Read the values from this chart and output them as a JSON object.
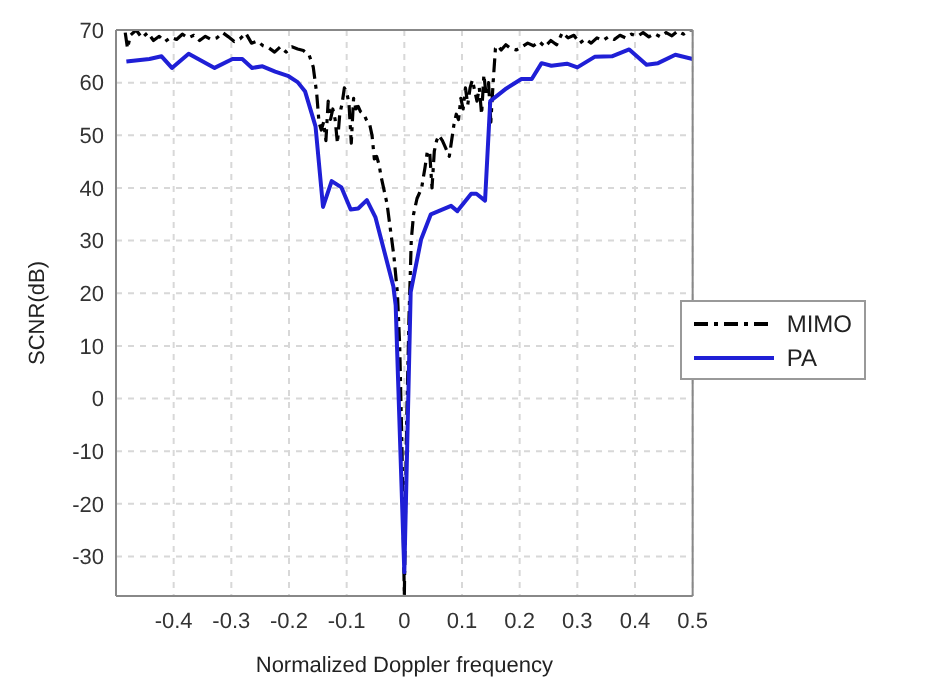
{
  "chart_data": {
    "type": "line",
    "xlabel": "Normalized Doppler frequency",
    "ylabel": "SCNR(dB)",
    "xlim": [
      -0.5,
      0.5
    ],
    "ylim": [
      -37.5,
      70
    ],
    "xticks": [
      -0.4,
      -0.3,
      -0.2,
      -0.1,
      0,
      0.1,
      0.2,
      0.3,
      0.4,
      0.5
    ],
    "yticks": [
      -30,
      -20,
      -10,
      0,
      10,
      20,
      30,
      40,
      50,
      60,
      70
    ],
    "grid": true,
    "legend": "right",
    "marker": "none",
    "series": [
      {
        "name": "MIMO",
        "color": "#000000",
        "line_style": "dashed",
        "x": [
          -0.484,
          -0.48,
          -0.475,
          -0.465,
          -0.455,
          -0.445,
          -0.435,
          -0.425,
          -0.415,
          -0.405,
          -0.395,
          -0.385,
          -0.375,
          -0.365,
          -0.355,
          -0.345,
          -0.335,
          -0.325,
          -0.315,
          -0.305,
          -0.295,
          -0.285,
          -0.275,
          -0.265,
          -0.255,
          -0.245,
          -0.235,
          -0.225,
          -0.215,
          -0.205,
          -0.195,
          -0.185,
          -0.175,
          -0.165,
          -0.158,
          -0.152,
          -0.148,
          -0.144,
          -0.14,
          -0.136,
          -0.132,
          -0.128,
          -0.124,
          -0.12,
          -0.116,
          -0.112,
          -0.108,
          -0.104,
          -0.1,
          -0.096,
          -0.092,
          -0.088,
          -0.084,
          -0.08,
          -0.076,
          -0.07,
          -0.066,
          -0.06,
          -0.056,
          -0.052,
          -0.048,
          -0.044,
          -0.04,
          -0.036,
          -0.03,
          -0.024,
          -0.018,
          -0.012,
          -0.008,
          -0.004,
          0,
          0.004,
          0.008,
          0.012,
          0.016,
          0.022,
          0.03,
          0.036,
          0.04,
          0.044,
          0.048,
          0.052,
          0.056,
          0.06,
          0.066,
          0.072,
          0.078,
          0.082,
          0.086,
          0.09,
          0.094,
          0.098,
          0.102,
          0.106,
          0.11,
          0.114,
          0.118,
          0.122,
          0.126,
          0.13,
          0.134,
          0.138,
          0.142,
          0.146,
          0.15,
          0.154,
          0.158,
          0.162,
          0.168,
          0.176,
          0.184,
          0.194,
          0.204,
          0.214,
          0.224,
          0.234,
          0.244,
          0.254,
          0.264,
          0.274,
          0.284,
          0.294,
          0.304,
          0.314,
          0.324,
          0.334,
          0.344,
          0.354,
          0.364,
          0.374,
          0.384,
          0.394,
          0.404,
          0.414,
          0.424,
          0.434,
          0.444,
          0.454,
          0.464,
          0.474,
          0.484,
          0.494,
          0.5
        ],
        "values": [
          69.5,
          66.5,
          69,
          70,
          68.5,
          69.5,
          68,
          68.8,
          67.8,
          68.6,
          68.2,
          69.2,
          68.5,
          69,
          68,
          68.8,
          68.2,
          68.5,
          69.5,
          68.7,
          67.8,
          68.3,
          69.4,
          67.5,
          67.9,
          67,
          66.6,
          65.8,
          66.8,
          65.8,
          66.8,
          66.4,
          66.1,
          65.2,
          63,
          58,
          52.5,
          51,
          52.5,
          49,
          56.5,
          53,
          55,
          53,
          48.5,
          54,
          56,
          59,
          58.2,
          56,
          48.5,
          57,
          55,
          55.5,
          54.5,
          54,
          53,
          52,
          50,
          45.5,
          46,
          44.5,
          42,
          40,
          37,
          32,
          27,
          20,
          10,
          -10,
          -37.5,
          -5,
          15,
          30,
          35,
          38,
          40,
          44,
          47,
          46.8,
          40,
          47,
          49,
          50,
          49,
          47.5,
          46,
          49,
          52,
          54,
          53,
          57,
          55,
          59,
          55.8,
          59,
          60.5,
          58.5,
          56.5,
          59,
          54,
          61.5,
          57.5,
          60,
          52.5,
          60,
          66.5,
          67,
          66.2,
          67.2,
          66.5,
          66.2,
          66.8,
          67.5,
          67,
          67.8,
          66.8,
          68,
          67.2,
          69.5,
          68.5,
          69,
          67.5,
          68.3,
          67.5,
          68.5,
          68,
          68.7,
          68.2,
          69,
          68.5,
          69.2,
          68.8,
          69.5,
          68.7,
          69.3,
          68.7,
          69.5,
          68.9,
          69.8,
          69.2,
          70,
          70
        ]
      },
      {
        "name": "PA",
        "color": "#1f1fd6",
        "line_style": "solid",
        "x": [
          -0.482,
          -0.442,
          -0.421,
          -0.403,
          -0.374,
          -0.329,
          -0.298,
          -0.281,
          -0.264,
          -0.246,
          -0.224,
          -0.202,
          -0.185,
          -0.172,
          -0.154,
          -0.141,
          -0.126,
          -0.109,
          -0.093,
          -0.08,
          -0.065,
          -0.05,
          -0.019,
          -0.015,
          0,
          0.011,
          0.029,
          0.046,
          0.081,
          0.092,
          0.116,
          0.125,
          0.14,
          0.149,
          0.177,
          0.203,
          0.221,
          0.238,
          0.255,
          0.282,
          0.3,
          0.33,
          0.36,
          0.39,
          0.42,
          0.44,
          0.47,
          0.5
        ],
        "values": [
          64,
          64.5,
          65,
          62.8,
          65.5,
          62.8,
          64.5,
          64.5,
          62.8,
          63.1,
          62.1,
          61.3,
          60.1,
          58.3,
          51.7,
          36.4,
          41.3,
          40.1,
          35.9,
          36.1,
          37.7,
          34.4,
          21.3,
          17.7,
          -33,
          20.2,
          30.2,
          35,
          36.6,
          35.6,
          38.9,
          38.9,
          37.6,
          56.5,
          58.9,
          60.7,
          60.7,
          63.7,
          63.2,
          63.6,
          62.9,
          64.9,
          65,
          66.3,
          63.4,
          63.7,
          65.3,
          64.5
        ]
      }
    ]
  }
}
